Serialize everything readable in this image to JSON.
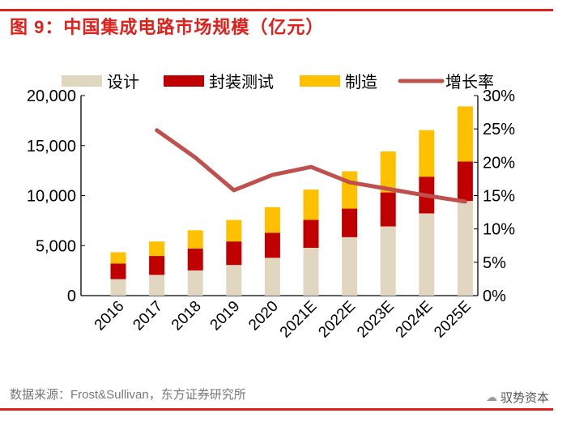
{
  "title": "图 9：中国集成电路市场规模（亿元）",
  "source": "数据来源：Frost&Sullivan，东方证券研究所",
  "watermark": "驭势资本",
  "chart_data": {
    "type": "bar",
    "stacked": true,
    "title": "图 9：中国集成电路市场规模（亿元）",
    "categories": [
      "2016",
      "2017",
      "2018",
      "2019",
      "2020",
      "2021E",
      "2022E",
      "2023E",
      "2024E",
      "2025E"
    ],
    "series": [
      {
        "name": "设计",
        "axis": "left",
        "type": "bar",
        "color": "#e1d6bf",
        "values": [
          1644,
          2073,
          2519,
          3064,
          3778,
          4780,
          5840,
          6920,
          8220,
          9460
        ]
      },
      {
        "name": "封装测试",
        "axis": "left",
        "type": "bar",
        "color": "#c00000",
        "values": [
          1564,
          1889,
          2194,
          2350,
          2510,
          2790,
          2860,
          3400,
          3670,
          3950
        ]
      },
      {
        "name": "制造",
        "axis": "left",
        "type": "bar",
        "color": "#ffc000",
        "values": [
          1127,
          1448,
          1818,
          2149,
          2560,
          3030,
          3730,
          4090,
          4650,
          5510
        ]
      },
      {
        "name": "增长率",
        "axis": "right",
        "type": "line",
        "color": "#c0504d",
        "values": [
          null,
          24.8,
          20.7,
          15.8,
          18.1,
          19.3,
          17.0,
          16.0,
          15.0,
          14.1
        ]
      }
    ],
    "yleft": {
      "range": [
        0,
        20000
      ],
      "ticks": [
        "0",
        "5,000",
        "10,000",
        "15,000",
        "20,000"
      ],
      "tick_values": [
        0,
        5000,
        10000,
        15000,
        20000
      ]
    },
    "yright": {
      "range": [
        0,
        30
      ],
      "ticks": [
        "0%",
        "5%",
        "10%",
        "15%",
        "20%",
        "25%",
        "30%"
      ],
      "tick_values": [
        0,
        5,
        10,
        15,
        20,
        25,
        30
      ]
    },
    "legend": "top",
    "grid": false
  }
}
